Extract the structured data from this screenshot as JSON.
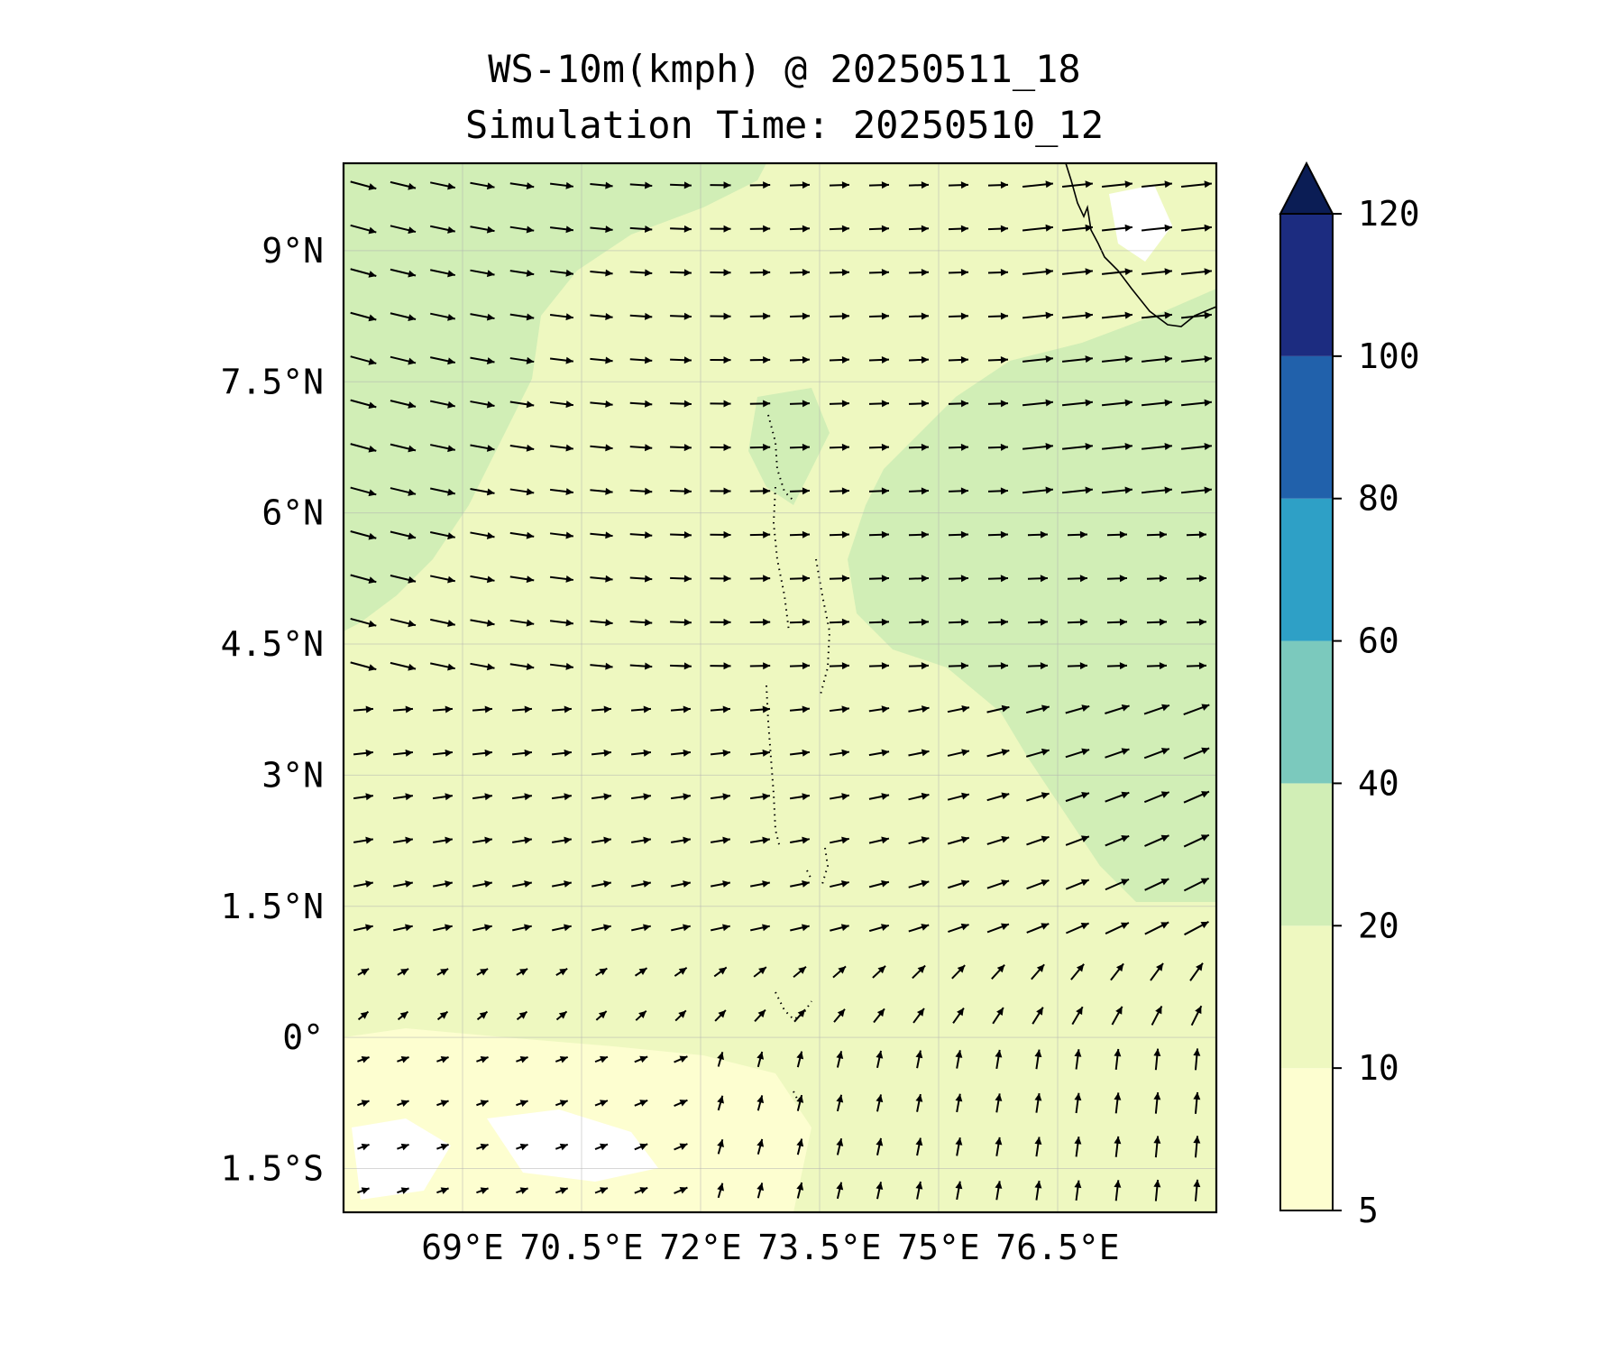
{
  "title": {
    "line1": "WS-10m(kmph) @ 20250511_18",
    "line2": "Simulation Time: 20250510_12"
  },
  "map": {
    "lon_range": [
      67.5,
      78.5
    ],
    "lat_range": [
      -2.0,
      10.0
    ],
    "x_ticks": [
      {
        "value": 69,
        "label": "69°E"
      },
      {
        "value": 70.5,
        "label": "70.5°E"
      },
      {
        "value": 72,
        "label": "72°E"
      },
      {
        "value": 73.5,
        "label": "73.5°E"
      },
      {
        "value": 75,
        "label": "75°E"
      },
      {
        "value": 76.5,
        "label": "76.5°E"
      }
    ],
    "y_ticks": [
      {
        "value": 9,
        "label": "9°N"
      },
      {
        "value": 7.5,
        "label": "7.5°N"
      },
      {
        "value": 6,
        "label": "6°N"
      },
      {
        "value": 4.5,
        "label": "4.5°N"
      },
      {
        "value": 3,
        "label": "3°N"
      },
      {
        "value": 1.5,
        "label": "1.5°N"
      },
      {
        "value": 0,
        "label": "0°"
      },
      {
        "value": -1.5,
        "label": "1.5°S"
      }
    ],
    "gridlines": true,
    "field_colors": {
      "below_10": "#fdfed0",
      "10_20": "#eef8c0",
      "20_40": "#d1eeb6",
      "calm": "#ffffff"
    },
    "vector_spacing_deg": 0.5
  },
  "colorbar": {
    "levels": [
      5,
      10,
      20,
      40,
      60,
      80,
      100,
      120
    ],
    "tick_labels": [
      "5",
      "10",
      "20",
      "40",
      "60",
      "80",
      "100",
      "120"
    ],
    "colors": [
      "#fdfed0",
      "#eef8c0",
      "#d1eeb6",
      "#7bc9bd",
      "#2ea0c6",
      "#2161ab",
      "#1c2c80"
    ],
    "extend_color": "#0b1d55",
    "extend": "max"
  }
}
